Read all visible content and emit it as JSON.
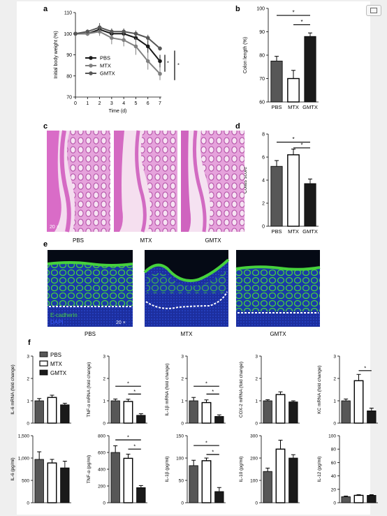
{
  "toolbar": {
    "corner_button_icon": "window-icon"
  },
  "colors": {
    "dark": "#1a1a1a",
    "mid_dark": "#575757",
    "mid": "#808080",
    "white": "#ffffff",
    "he_pink": "#d873c4",
    "green": "#46d13c",
    "blue": "#1830b8"
  },
  "panels": {
    "a": {
      "letter": "a"
    },
    "b": {
      "letter": "b"
    },
    "c": {
      "letter": "c",
      "magnification": "20 ×",
      "labels": [
        "PBS",
        "MTX",
        "GMTX"
      ]
    },
    "d": {
      "letter": "d"
    },
    "e": {
      "letter": "e",
      "legend_marker": "E-cadherin",
      "legend_stain": "DAPI",
      "magnification": "20 ×",
      "labels": [
        "PBS",
        "MTX",
        "GMTX"
      ]
    },
    "f": {
      "letter": "f",
      "legend": [
        "PBS",
        "MTX",
        "GMTX"
      ]
    }
  },
  "significance_mark": "*",
  "chart_data": [
    {
      "panel": "a",
      "type": "line",
      "xlabel": "Time (d)",
      "ylabel": "Initial body weight (%)",
      "x": [
        0,
        1,
        2,
        3,
        4,
        5,
        6,
        7
      ],
      "xlim": [
        0,
        7
      ],
      "ylim": [
        70,
        110
      ],
      "yticks": [
        70,
        80,
        90,
        100,
        110
      ],
      "legend_position": "center-left",
      "series": [
        {
          "name": "PBS",
          "values": [
            100,
            100,
            102,
            100,
            100,
            98,
            94,
            87
          ],
          "errors": [
            0,
            1,
            1.5,
            2,
            2,
            2,
            3,
            3
          ]
        },
        {
          "name": "MTX",
          "values": [
            100,
            100,
            101,
            98,
            97,
            94,
            87,
            81
          ],
          "errors": [
            0,
            1,
            2,
            3,
            3,
            4,
            4,
            3
          ]
        },
        {
          "name": "GMTX",
          "values": [
            100,
            101,
            103,
            101,
            101,
            100,
            98,
            93
          ],
          "errors": [
            0,
            1,
            2,
            1.5,
            1.5,
            1.5,
            1.5,
            1
          ]
        }
      ],
      "significance": [
        {
          "between": [
            "PBS",
            "MTX"
          ]
        },
        {
          "between": [
            "MTX",
            "GMTX"
          ]
        }
      ]
    },
    {
      "panel": "b",
      "type": "bar",
      "categories": [
        "PBS",
        "MTX",
        "GMTX"
      ],
      "values": [
        77.5,
        70,
        88
      ],
      "errors": [
        2,
        3.5,
        1.5
      ],
      "ylabel": "Colon length (%)",
      "ylim": [
        60,
        100
      ],
      "yticks": [
        60,
        70,
        80,
        90,
        100
      ],
      "significance": [
        {
          "between": [
            "PBS",
            "GMTX"
          ]
        },
        {
          "between": [
            "MTX",
            "GMTX"
          ]
        }
      ]
    },
    {
      "panel": "d",
      "type": "bar",
      "categories": [
        "PBS",
        "MTX",
        "GMTX"
      ],
      "values": [
        5.2,
        6.2,
        3.7
      ],
      "errors": [
        0.5,
        0.5,
        0.4
      ],
      "ylabel": "Colitis score",
      "ylim": [
        0,
        8
      ],
      "yticks": [
        0,
        2,
        4,
        6,
        8
      ],
      "significance": [
        {
          "between": [
            "PBS",
            "GMTX"
          ]
        },
        {
          "between": [
            "MTX",
            "GMTX"
          ]
        }
      ]
    },
    {
      "panel": "f",
      "type": "bar",
      "categories": [
        "PBS",
        "MTX",
        "GMTX"
      ],
      "ylabel": "IL-6 mRNA (fold change)",
      "values": [
        1.0,
        1.15,
        0.82
      ],
      "errors": [
        0.1,
        0.1,
        0.07
      ],
      "ylim": [
        0,
        3
      ],
      "yticks": [
        0,
        1,
        2,
        3
      ],
      "significance": []
    },
    {
      "panel": "f",
      "type": "bar",
      "categories": [
        "PBS",
        "MTX",
        "GMTX"
      ],
      "ylabel": "TNF-α mRNA (fold change)",
      "values": [
        1.0,
        0.97,
        0.35
      ],
      "errors": [
        0.08,
        0.1,
        0.07
      ],
      "ylim": [
        0,
        3
      ],
      "yticks": [
        0,
        1,
        2,
        3
      ],
      "significance": [
        {
          "between": [
            "PBS",
            "GMTX"
          ]
        },
        {
          "between": [
            "MTX",
            "GMTX"
          ]
        }
      ]
    },
    {
      "panel": "f",
      "type": "bar",
      "categories": [
        "PBS",
        "MTX",
        "GMTX"
      ],
      "ylabel": "IL-1β mRNA (fold change)",
      "values": [
        1.0,
        0.92,
        0.3
      ],
      "errors": [
        0.15,
        0.12,
        0.07
      ],
      "ylim": [
        0,
        3
      ],
      "yticks": [
        0,
        1,
        2,
        3
      ],
      "significance": [
        {
          "between": [
            "PBS",
            "GMTX"
          ]
        },
        {
          "between": [
            "MTX",
            "GMTX"
          ]
        }
      ]
    },
    {
      "panel": "f",
      "type": "bar",
      "categories": [
        "PBS",
        "MTX",
        "GMTX"
      ],
      "ylabel": "COX-2 mRNA (fold change)",
      "values": [
        1.0,
        1.28,
        0.95
      ],
      "errors": [
        0.05,
        0.12,
        0.05
      ],
      "ylim": [
        0,
        3
      ],
      "yticks": [
        0,
        1,
        2,
        3
      ],
      "significance": []
    },
    {
      "panel": "f",
      "type": "bar",
      "categories": [
        "PBS",
        "MTX",
        "GMTX"
      ],
      "ylabel": "KC mRNA (fold change)",
      "values": [
        1.0,
        1.9,
        0.55
      ],
      "errors": [
        0.08,
        0.28,
        0.12
      ],
      "ylim": [
        0,
        3
      ],
      "yticks": [
        0,
        1,
        2,
        3
      ],
      "significance": [
        {
          "between": [
            "MTX",
            "GMTX"
          ]
        }
      ]
    },
    {
      "panel": "f",
      "type": "bar",
      "categories": [
        "PBS",
        "MTX",
        "GMTX"
      ],
      "ylabel": "IL-6 (pg/ml)",
      "values": [
        970,
        890,
        780
      ],
      "errors": [
        170,
        80,
        150
      ],
      "ylim": [
        0,
        1500
      ],
      "yticks": [
        0,
        500,
        1000,
        1500
      ],
      "ytick_labels": [
        "0",
        "500",
        "1,000",
        "1,500"
      ],
      "significance": []
    },
    {
      "panel": "f",
      "type": "bar",
      "categories": [
        "PBS",
        "MTX",
        "GMTX"
      ],
      "ylabel": "TNF-α (pg/ml)",
      "values": [
        600,
        530,
        180
      ],
      "errors": [
        80,
        50,
        25
      ],
      "ylim": [
        0,
        800
      ],
      "yticks": [
        0,
        200,
        400,
        600,
        800
      ],
      "significance": [
        {
          "between": [
            "PBS",
            "GMTX"
          ]
        },
        {
          "between": [
            "MTX",
            "GMTX"
          ]
        }
      ]
    },
    {
      "panel": "f",
      "type": "bar",
      "categories": [
        "PBS",
        "MTX",
        "GMTX"
      ],
      "ylabel": "IL-1β (pg/ml)",
      "values": [
        83,
        94,
        25
      ],
      "errors": [
        12,
        6,
        9
      ],
      "ylim": [
        0,
        150
      ],
      "yticks": [
        0,
        50,
        100,
        150
      ],
      "significance": [
        {
          "between": [
            "PBS",
            "GMTX"
          ]
        },
        {
          "between": [
            "MTX",
            "GMTX"
          ]
        }
      ]
    },
    {
      "panel": "f",
      "type": "bar",
      "categories": [
        "PBS",
        "MTX",
        "GMTX"
      ],
      "ylabel": "IL-10 (pg/ml)",
      "values": [
        140,
        240,
        200
      ],
      "errors": [
        15,
        40,
        15
      ],
      "ylim": [
        0,
        300
      ],
      "yticks": [
        0,
        100,
        200,
        300
      ],
      "significance": []
    },
    {
      "panel": "f",
      "type": "bar",
      "categories": [
        "PBS",
        "MTX",
        "GMTX"
      ],
      "ylabel": "IL-12 (pg/ml)",
      "values": [
        9,
        11,
        11
      ],
      "errors": [
        1,
        1,
        1
      ],
      "ylim": [
        0,
        100
      ],
      "yticks": [
        0,
        20,
        40,
        60,
        80,
        100
      ],
      "significance": []
    }
  ]
}
